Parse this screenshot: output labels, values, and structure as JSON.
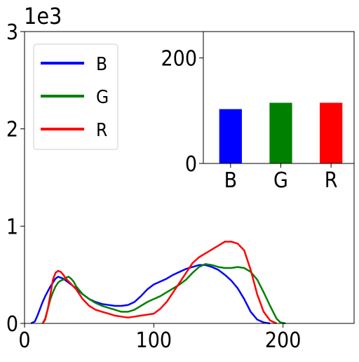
{
  "chart_data": [
    {
      "type": "line",
      "title": "",
      "xlabel": "",
      "ylabel": "",
      "xlim": [
        0,
        255
      ],
      "ylim": [
        0,
        3
      ],
      "y_scale_label": "1e3",
      "x_ticks": [
        "0",
        "100",
        "200"
      ],
      "y_ticks": [
        "0",
        "1",
        "2",
        "3"
      ],
      "grid": false,
      "legend_position": "top-left",
      "series": [
        {
          "name": "B",
          "color": "#0000ff",
          "points": [
            [
              5,
              0
            ],
            [
              8,
              0.02
            ],
            [
              10,
              0.08
            ],
            [
              12,
              0.15
            ],
            [
              14,
              0.22
            ],
            [
              16,
              0.28
            ],
            [
              18,
              0.33
            ],
            [
              20,
              0.38
            ],
            [
              22,
              0.42
            ],
            [
              24,
              0.46
            ],
            [
              26,
              0.48
            ],
            [
              28,
              0.47
            ],
            [
              30,
              0.46
            ],
            [
              32,
              0.44
            ],
            [
              34,
              0.42
            ],
            [
              36,
              0.4
            ],
            [
              38,
              0.38
            ],
            [
              40,
              0.36
            ],
            [
              45,
              0.3
            ],
            [
              50,
              0.25
            ],
            [
              55,
              0.22
            ],
            [
              60,
              0.2
            ],
            [
              65,
              0.19
            ],
            [
              70,
              0.18
            ],
            [
              75,
              0.18
            ],
            [
              80,
              0.19
            ],
            [
              85,
              0.22
            ],
            [
              90,
              0.28
            ],
            [
              95,
              0.35
            ],
            [
              100,
              0.4
            ],
            [
              105,
              0.43
            ],
            [
              110,
              0.46
            ],
            [
              115,
              0.5
            ],
            [
              120,
              0.53
            ],
            [
              125,
              0.56
            ],
            [
              130,
              0.58
            ],
            [
              135,
              0.6
            ],
            [
              140,
              0.6
            ],
            [
              145,
              0.58
            ],
            [
              150,
              0.55
            ],
            [
              155,
              0.5
            ],
            [
              160,
              0.44
            ],
            [
              165,
              0.36
            ],
            [
              170,
              0.25
            ],
            [
              175,
              0.12
            ],
            [
              180,
              0.04
            ],
            [
              185,
              0.01
            ],
            [
              190,
              0
            ]
          ]
        },
        {
          "name": "G",
          "color": "#008000",
          "points": [
            [
              14,
              0
            ],
            [
              16,
              0.05
            ],
            [
              18,
              0.15
            ],
            [
              20,
              0.25
            ],
            [
              22,
              0.32
            ],
            [
              24,
              0.38
            ],
            [
              26,
              0.42
            ],
            [
              28,
              0.44
            ],
            [
              30,
              0.45
            ],
            [
              32,
              0.47
            ],
            [
              34,
              0.48
            ],
            [
              36,
              0.46
            ],
            [
              38,
              0.43
            ],
            [
              40,
              0.38
            ],
            [
              45,
              0.3
            ],
            [
              50,
              0.25
            ],
            [
              55,
              0.21
            ],
            [
              60,
              0.18
            ],
            [
              65,
              0.16
            ],
            [
              70,
              0.14
            ],
            [
              75,
              0.12
            ],
            [
              80,
              0.12
            ],
            [
              85,
              0.14
            ],
            [
              90,
              0.18
            ],
            [
              95,
              0.22
            ],
            [
              100,
              0.25
            ],
            [
              105,
              0.28
            ],
            [
              110,
              0.32
            ],
            [
              115,
              0.36
            ],
            [
              120,
              0.4
            ],
            [
              125,
              0.45
            ],
            [
              130,
              0.52
            ],
            [
              135,
              0.58
            ],
            [
              140,
              0.61
            ],
            [
              145,
              0.6
            ],
            [
              150,
              0.58
            ],
            [
              155,
              0.57
            ],
            [
              160,
              0.57
            ],
            [
              165,
              0.58
            ],
            [
              170,
              0.57
            ],
            [
              175,
              0.53
            ],
            [
              180,
              0.45
            ],
            [
              185,
              0.32
            ],
            [
              190,
              0.18
            ],
            [
              195,
              0.05
            ],
            [
              198,
              0.01
            ],
            [
              202,
              0
            ]
          ]
        },
        {
          "name": "R",
          "color": "#ff0000",
          "points": [
            [
              14,
              0
            ],
            [
              16,
              0.04
            ],
            [
              18,
              0.15
            ],
            [
              20,
              0.3
            ],
            [
              22,
              0.45
            ],
            [
              24,
              0.52
            ],
            [
              26,
              0.54
            ],
            [
              28,
              0.53
            ],
            [
              30,
              0.5
            ],
            [
              32,
              0.46
            ],
            [
              35,
              0.42
            ],
            [
              40,
              0.35
            ],
            [
              45,
              0.25
            ],
            [
              50,
              0.18
            ],
            [
              55,
              0.14
            ],
            [
              60,
              0.12
            ],
            [
              65,
              0.1
            ],
            [
              70,
              0.08
            ],
            [
              75,
              0.07
            ],
            [
              80,
              0.06
            ],
            [
              85,
              0.07
            ],
            [
              90,
              0.08
            ],
            [
              95,
              0.09
            ],
            [
              100,
              0.1
            ],
            [
              105,
              0.15
            ],
            [
              110,
              0.22
            ],
            [
              115,
              0.32
            ],
            [
              120,
              0.42
            ],
            [
              125,
              0.52
            ],
            [
              130,
              0.62
            ],
            [
              135,
              0.68
            ],
            [
              140,
              0.72
            ],
            [
              145,
              0.76
            ],
            [
              150,
              0.8
            ],
            [
              155,
              0.84
            ],
            [
              160,
              0.84
            ],
            [
              165,
              0.82
            ],
            [
              170,
              0.75
            ],
            [
              175,
              0.55
            ],
            [
              180,
              0.3
            ],
            [
              185,
              0.12
            ],
            [
              190,
              0.03
            ],
            [
              195,
              0
            ]
          ]
        }
      ]
    },
    {
      "type": "bar",
      "title": "",
      "xlabel": "",
      "ylabel": "",
      "categories": [
        "B",
        "G",
        "R"
      ],
      "values": [
        103,
        115,
        115
      ],
      "colors": [
        "#0000ff",
        "#008000",
        "#ff0000"
      ],
      "ylim": [
        0,
        250
      ],
      "y_ticks": [
        "0",
        "200"
      ],
      "grid": false
    }
  ]
}
